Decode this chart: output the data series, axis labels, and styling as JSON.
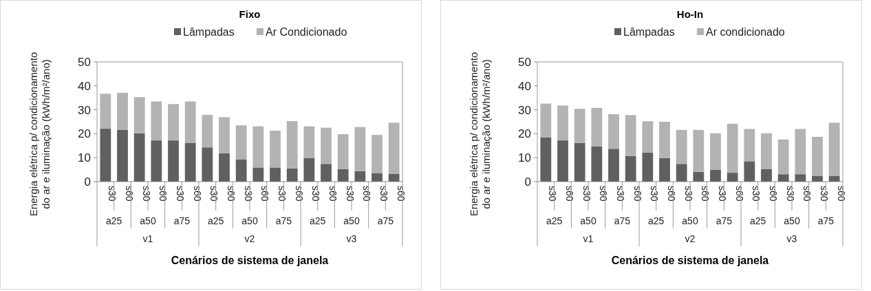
{
  "chart_data": [
    {
      "type": "bar",
      "stacked": true,
      "title": "Fixo",
      "xlabel": "Cenários de sistema de janela",
      "ylabel": "Energia elétrica p/ condicionamento do ar e iluminação (kWh/m²/ano)",
      "categories": [
        "s30",
        "s60",
        "s30",
        "s60",
        "s30",
        "s60",
        "s30",
        "s60",
        "s30",
        "s60",
        "s30",
        "s60",
        "s30",
        "s60",
        "s30",
        "s60",
        "s30",
        "s60"
      ],
      "annotations": [
        "a25",
        "a50",
        "a75",
        "a25",
        "a50",
        "a75",
        "a25",
        "a50",
        "a75",
        "v1",
        "v2",
        "v3"
      ],
      "series": [
        {
          "name": "Lâmpadas",
          "color": "#606060",
          "values": [
            22.1,
            21.7,
            20.2,
            17.2,
            17.2,
            16.2,
            14.3,
            11.8,
            9.2,
            5.9,
            5.9,
            5.5,
            9.9,
            7.4,
            5.2,
            4.4,
            3.6,
            3.3
          ]
        },
        {
          "name": "Ar Condicionado",
          "color": "#b3b3b3",
          "values": [
            14.6,
            15.4,
            15.1,
            16.3,
            15.2,
            17.3,
            13.6,
            15.1,
            14.3,
            17.2,
            15.4,
            19.8,
            13.2,
            15.1,
            14.6,
            18.4,
            15.9,
            21.3
          ]
        }
      ],
      "ylim": [
        0,
        50
      ],
      "yticks": [
        0,
        10,
        20,
        30,
        40,
        50
      ],
      "legend": "top"
    },
    {
      "type": "bar",
      "stacked": true,
      "title": "Ho-In",
      "xlabel": "Cenários de sistema de janela",
      "ylabel": "Energia elétrica p/ condicionamento do ar e iluminação (kWh/m²/ano)",
      "categories": [
        "s30",
        "s60",
        "s30",
        "s60",
        "s30",
        "s60",
        "s30",
        "s60",
        "s30",
        "s60",
        "s30",
        "s60",
        "s30",
        "s60",
        "s30",
        "s60",
        "s30",
        "s60"
      ],
      "annotations": [
        "a25",
        "a50",
        "a75",
        "a25",
        "a50",
        "a75",
        "a25",
        "a50",
        "a75",
        "v1",
        "v2",
        "v3"
      ],
      "series": [
        {
          "name": "Lâmpadas",
          "color": "#606060",
          "values": [
            18.4,
            17.2,
            16.2,
            14.7,
            13.7,
            10.7,
            12.1,
            9.9,
            7.4,
            4.1,
            4.9,
            3.7,
            8.5,
            5.3,
            3.1,
            3.1,
            2.4,
            2.4
          ]
        },
        {
          "name": "Ar condicionado",
          "color": "#b3b3b3",
          "values": [
            14.2,
            14.6,
            14.2,
            16.1,
            14.5,
            17.1,
            13.1,
            15.1,
            14.2,
            17.5,
            15.3,
            20.5,
            13.5,
            14.9,
            14.5,
            18.9,
            16.3,
            22.2
          ]
        }
      ],
      "ylim": [
        0,
        50
      ],
      "yticks": [
        0,
        10,
        20,
        30,
        40,
        50
      ],
      "legend": "top"
    }
  ]
}
